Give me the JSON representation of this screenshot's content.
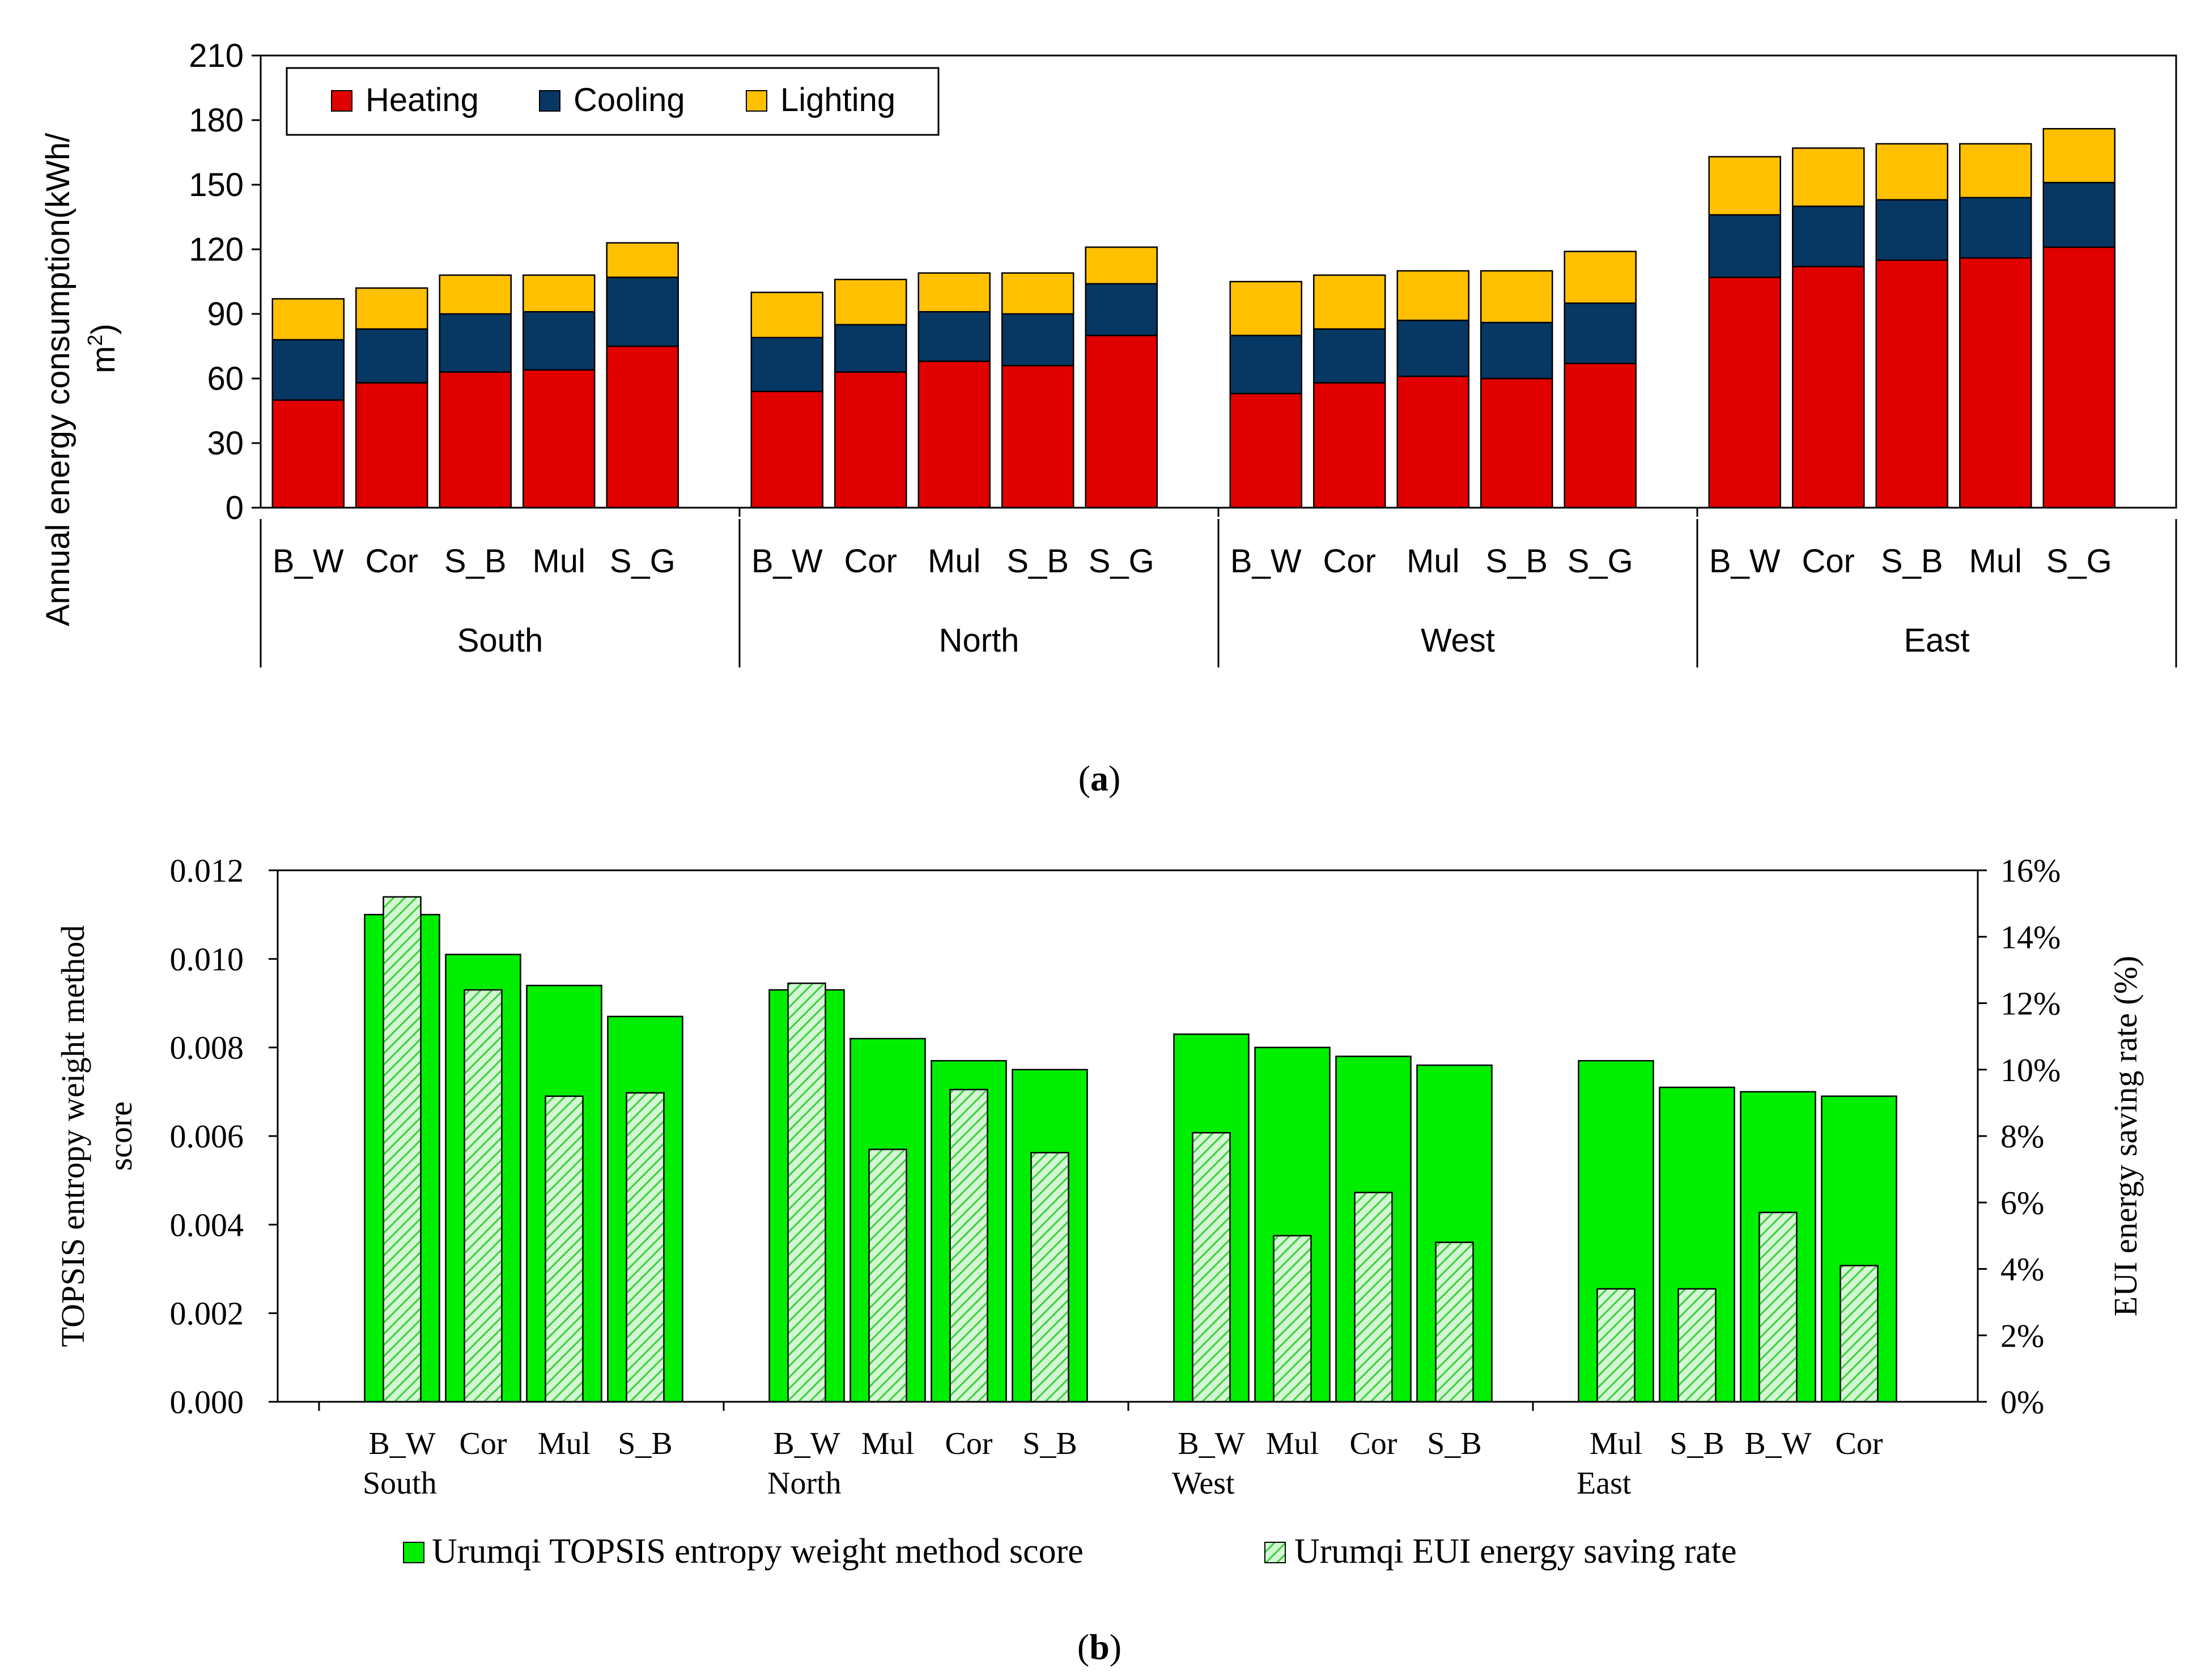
{
  "chart_data": [
    {
      "type": "bar",
      "stacked": true,
      "panel_label": "a",
      "ylabel": "Annual energy consumption(kWh/m²)",
      "ylim": [
        0,
        210
      ],
      "yticks": [
        "0",
        "30",
        "60",
        "90",
        "120",
        "150",
        "180",
        "210"
      ],
      "legend": {
        "position": "top-left",
        "entries": [
          "Heating",
          "Cooling",
          "Lighting"
        ]
      },
      "colors": {
        "Heating": "#e00000",
        "Cooling": "#073763",
        "Lighting": "#ffc000"
      },
      "groups": [
        {
          "name": "South",
          "categories": [
            "B_W",
            "Cor",
            "S_B",
            "Mul",
            "S_G"
          ],
          "heating": [
            50,
            58,
            63,
            64,
            75
          ],
          "cooling": [
            28,
            25,
            27,
            27,
            32
          ],
          "lighting": [
            19,
            19,
            18,
            17,
            16
          ]
        },
        {
          "name": "North",
          "categories": [
            "B_W",
            "Cor",
            "Mul",
            "S_B",
            "S_G"
          ],
          "heating": [
            54,
            63,
            68,
            66,
            80
          ],
          "cooling": [
            25,
            22,
            23,
            24,
            24
          ],
          "lighting": [
            21,
            21,
            18,
            19,
            17
          ]
        },
        {
          "name": "West",
          "categories": [
            "B_W",
            "Cor",
            "Mul",
            "S_B",
            "S_G"
          ],
          "heating": [
            53,
            58,
            61,
            60,
            67
          ],
          "cooling": [
            27,
            25,
            26,
            26,
            28
          ],
          "lighting": [
            25,
            25,
            23,
            24,
            24
          ]
        },
        {
          "name": "East",
          "categories": [
            "B_W",
            "Cor",
            "S_B",
            "Mul",
            "S_G"
          ],
          "heating": [
            107,
            112,
            115,
            116,
            121
          ],
          "cooling": [
            29,
            28,
            28,
            28,
            30
          ],
          "lighting": [
            27,
            27,
            26,
            25,
            25
          ]
        }
      ]
    },
    {
      "type": "bar",
      "panel_label": "b",
      "ylabel": "TOPSIS entropy weight method score",
      "y2label": "EUI energy saving rate (%)",
      "ylim": [
        0,
        0.012
      ],
      "yticks": [
        "0.000",
        "0.002",
        "0.004",
        "0.006",
        "0.008",
        "0.010",
        "0.012"
      ],
      "y2lim": [
        0,
        16
      ],
      "y2ticks": [
        "0%",
        "2%",
        "4%",
        "6%",
        "8%",
        "10%",
        "12%",
        "14%",
        "16%"
      ],
      "legend": {
        "position": "bottom",
        "entries": [
          "Urumqi TOPSIS entropy weight method score",
          "Urumqi EUI energy saving rate"
        ]
      },
      "colors": {
        "score": "#00ee00",
        "rate_fill": "#c6f5c6",
        "rate_hatch": "#3ccf3c"
      },
      "groups": [
        {
          "name": "South",
          "categories": [
            "B_W",
            "Cor",
            "Mul",
            "S_B"
          ],
          "score": [
            0.011,
            0.0101,
            0.0094,
            0.0087
          ],
          "rate": [
            15.2,
            12.4,
            9.2,
            9.3
          ]
        },
        {
          "name": "North",
          "categories": [
            "B_W",
            "Mul",
            "Cor",
            "S_B"
          ],
          "score": [
            0.0093,
            0.0082,
            0.0077,
            0.0075
          ],
          "rate": [
            12.6,
            7.6,
            9.4,
            7.5
          ]
        },
        {
          "name": "West",
          "categories": [
            "B_W",
            "Mul",
            "Cor",
            "S_B"
          ],
          "score": [
            0.0083,
            0.008,
            0.0078,
            0.0076
          ],
          "rate": [
            8.1,
            5.0,
            6.3,
            4.8
          ]
        },
        {
          "name": "East",
          "categories": [
            "Mul",
            "S_B",
            "B_W",
            "Cor"
          ],
          "score": [
            0.0077,
            0.0071,
            0.007,
            0.0069
          ],
          "rate": [
            3.4,
            3.4,
            5.7,
            4.1
          ]
        }
      ]
    }
  ]
}
